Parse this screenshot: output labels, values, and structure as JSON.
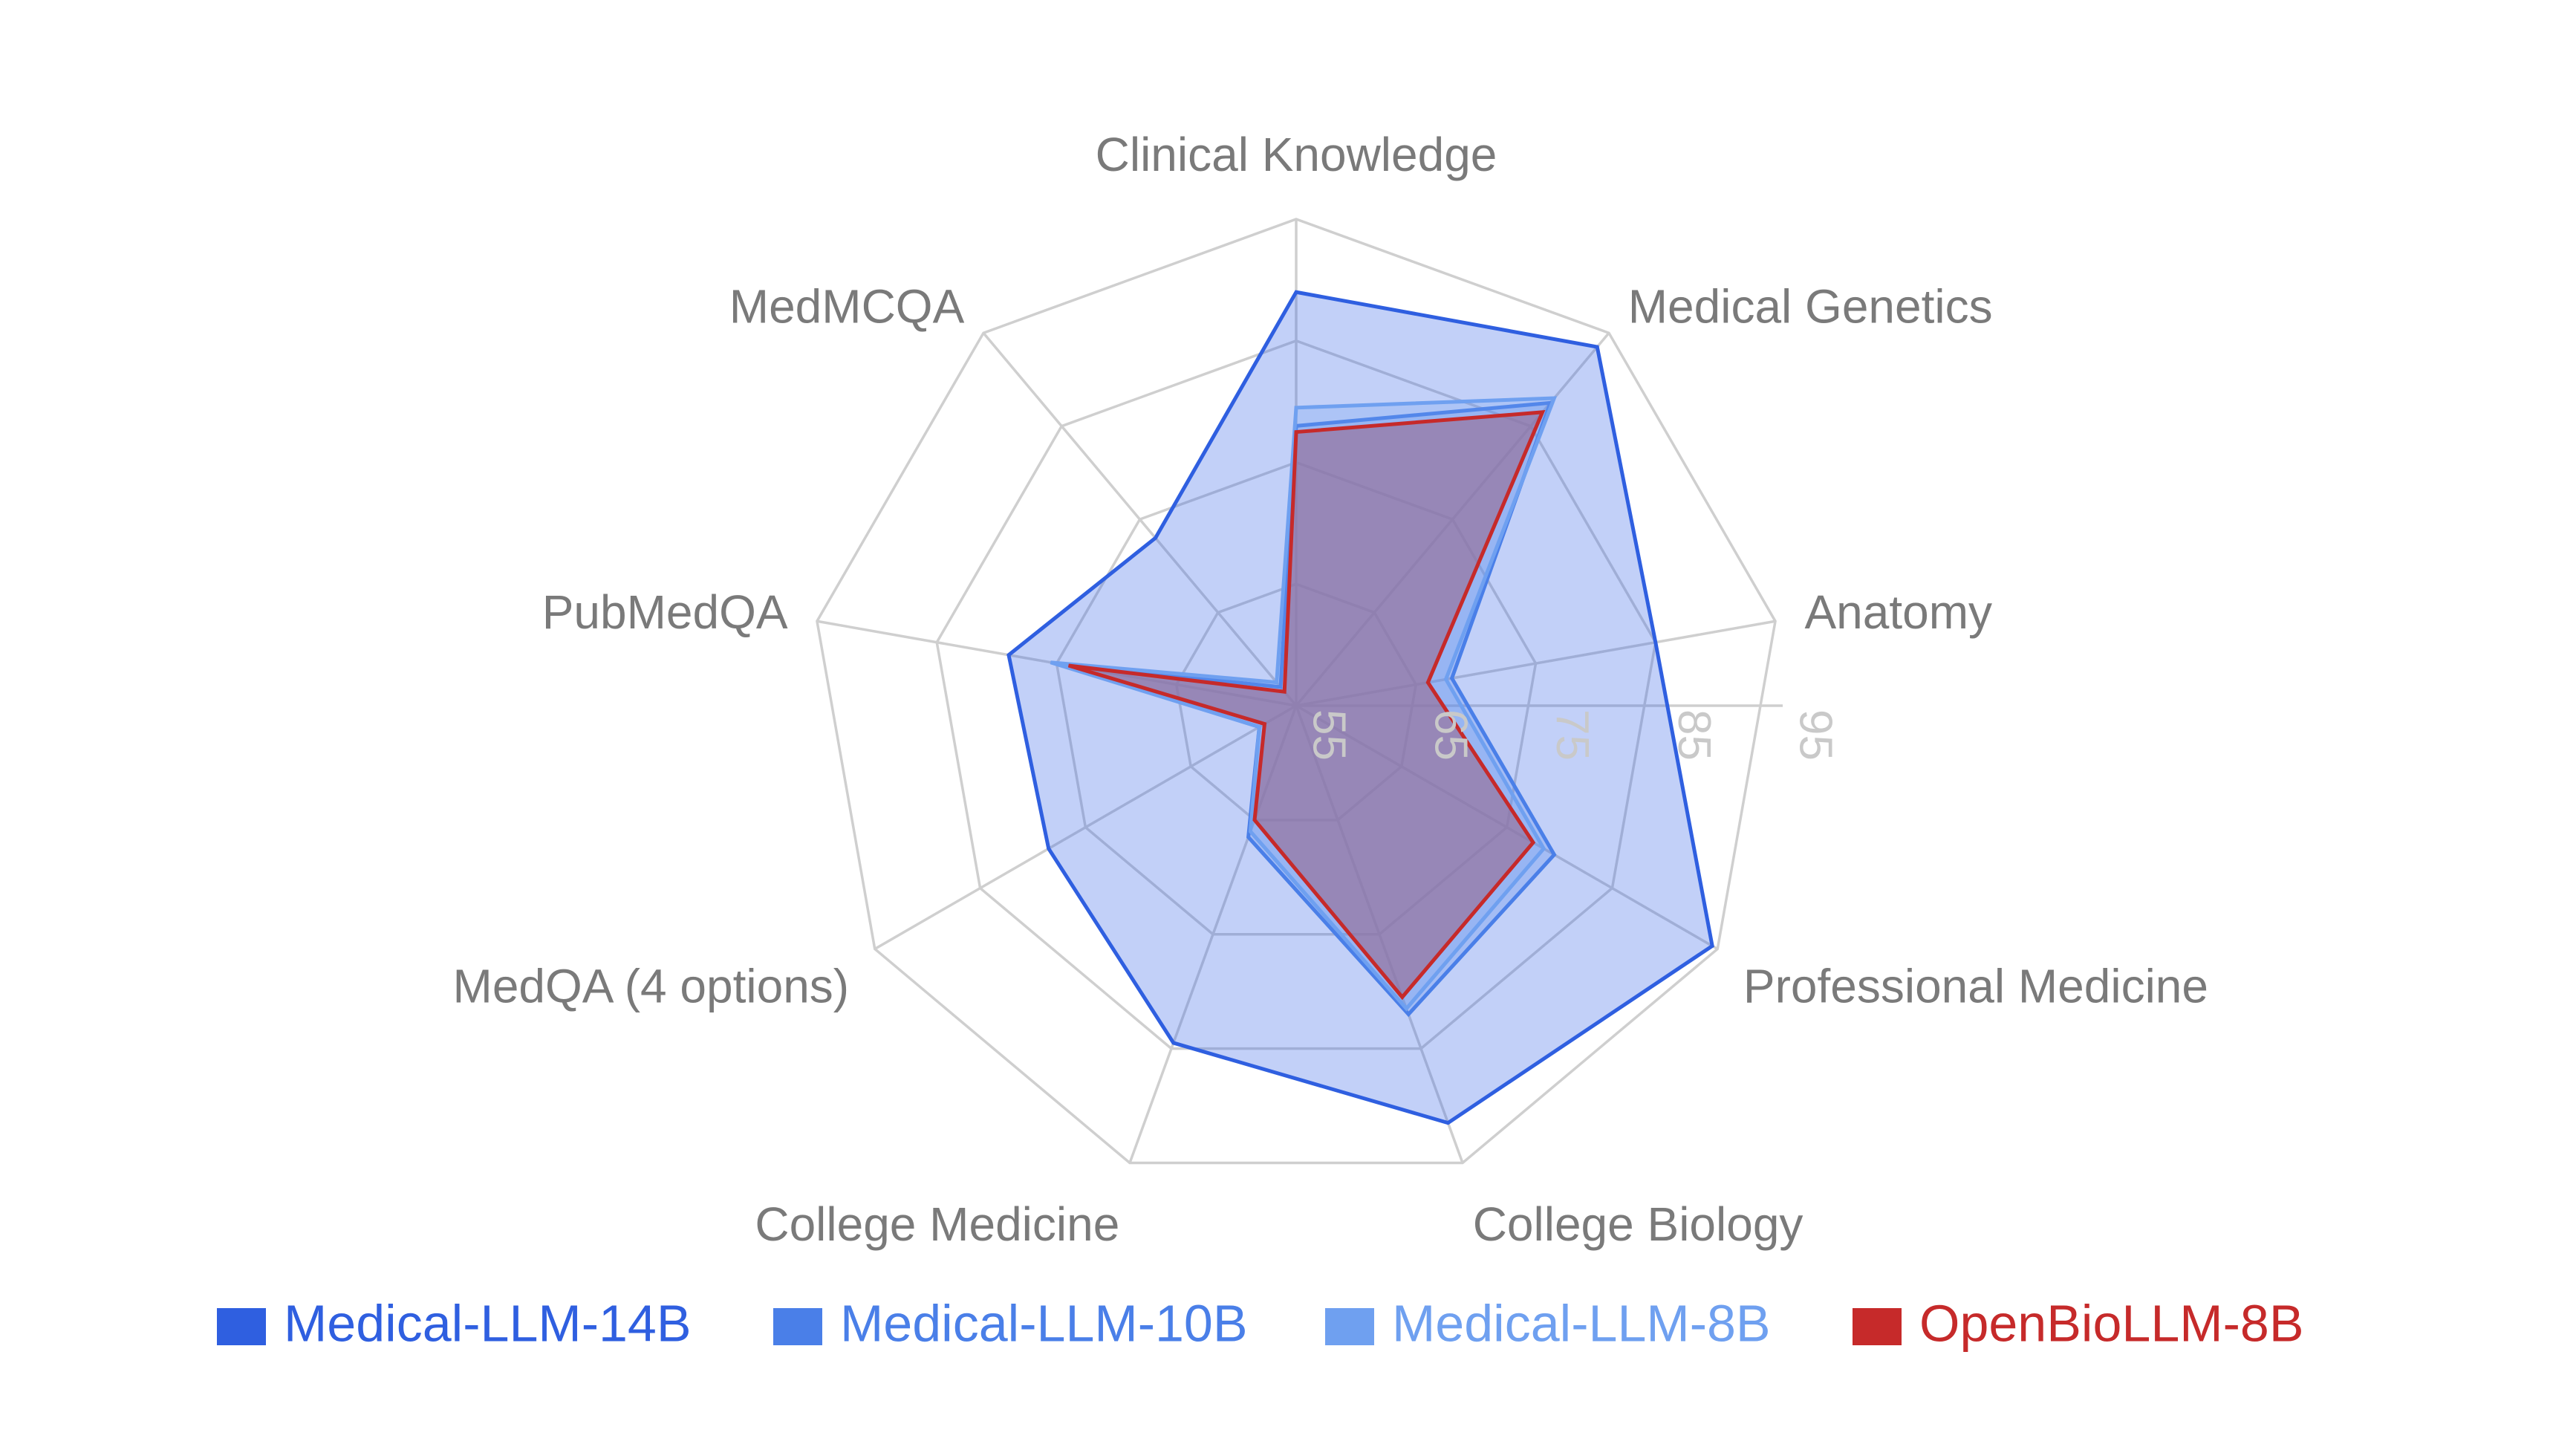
{
  "chart_data": {
    "type": "radar",
    "axes": [
      "Clinical Knowledge",
      "Medical Genetics",
      "Anatomy",
      "Professional Medicine",
      "College Biology",
      "College Medicine",
      "MedQA (4 options)",
      "PubMedQA",
      "MedMCQA"
    ],
    "tick_values": [
      55,
      65,
      75,
      85,
      95
    ],
    "range": [
      55,
      95
    ],
    "series": [
      {
        "name": "Medical-LLM-14B",
        "color": "#2f5fe0",
        "fill": "rgba(52,100,232,0.30)",
        "values": [
          89.0,
          93.5,
          85.0,
          94.5,
          91.5,
          84.5,
          78.5,
          79.0,
          73.0
        ]
      },
      {
        "name": "Medical-LLM-10B",
        "color": "#4a7fe8",
        "fill": "rgba(74,127,232,0.25)",
        "values": [
          78.0,
          87.5,
          68.0,
          79.5,
          82.0,
          66.5,
          58.5,
          75.0,
          57.0
        ]
      },
      {
        "name": "Medical-LLM-8B",
        "color": "#6fa0f0",
        "fill": "rgba(111,160,240,0.25)",
        "values": [
          79.5,
          88.0,
          67.5,
          78.5,
          81.5,
          66.0,
          58.5,
          75.5,
          57.5
        ]
      },
      {
        "name": "OpenBioLLM-8B",
        "color": "#c62a2a",
        "fill": "rgba(150,110,150,0.65)",
        "values": [
          77.5,
          86.5,
          66.0,
          77.5,
          80.5,
          65.0,
          58.0,
          74.0,
          56.5
        ]
      }
    ],
    "grid": true,
    "legend_position": "bottom"
  }
}
